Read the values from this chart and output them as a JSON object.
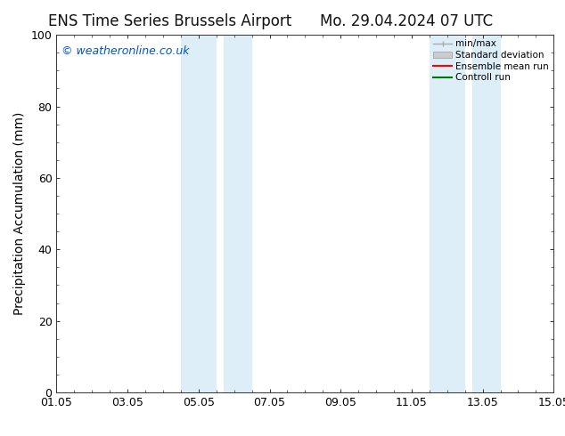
{
  "title_left": "ENS Time Series Brussels Airport",
  "title_right": "Mo. 29.04.2024 07 UTC",
  "ylabel": "Precipitation Accumulation (mm)",
  "xlim": [
    0,
    14
  ],
  "ylim": [
    0,
    100
  ],
  "yticks": [
    0,
    20,
    40,
    60,
    80,
    100
  ],
  "xtick_positions": [
    0,
    2,
    4,
    6,
    8,
    10,
    12,
    14
  ],
  "xtick_labels": [
    "01.05",
    "03.05",
    "05.05",
    "07.05",
    "09.05",
    "11.05",
    "13.05",
    "15.05"
  ],
  "shaded_bands": [
    {
      "x_start": 3.5,
      "x_end": 4.5,
      "gap_start": 4.5,
      "gap_end": 4.7,
      "x2_start": 4.7,
      "x2_end": 5.5
    },
    {
      "x_start": 10.5,
      "x_end": 11.5,
      "gap_start": 11.5,
      "gap_end": 11.7,
      "x2_start": 11.7,
      "x2_end": 12.5
    }
  ],
  "shaded_color": "#ddeef8",
  "watermark_text": "© weatheronline.co.uk",
  "watermark_color": "#0055cc",
  "legend_items": [
    {
      "label": "min/max",
      "color": "#aaaaaa",
      "style": "hline"
    },
    {
      "label": "Standard deviation",
      "color": "#cccccc",
      "style": "fill"
    },
    {
      "label": "Ensemble mean run",
      "color": "#ff0000",
      "style": "line"
    },
    {
      "label": "Controll run",
      "color": "#007700",
      "style": "line"
    }
  ],
  "background_color": "#ffffff",
  "title_fontsize": 12,
  "axis_fontsize": 10,
  "tick_fontsize": 9,
  "watermark_fontsize": 9
}
